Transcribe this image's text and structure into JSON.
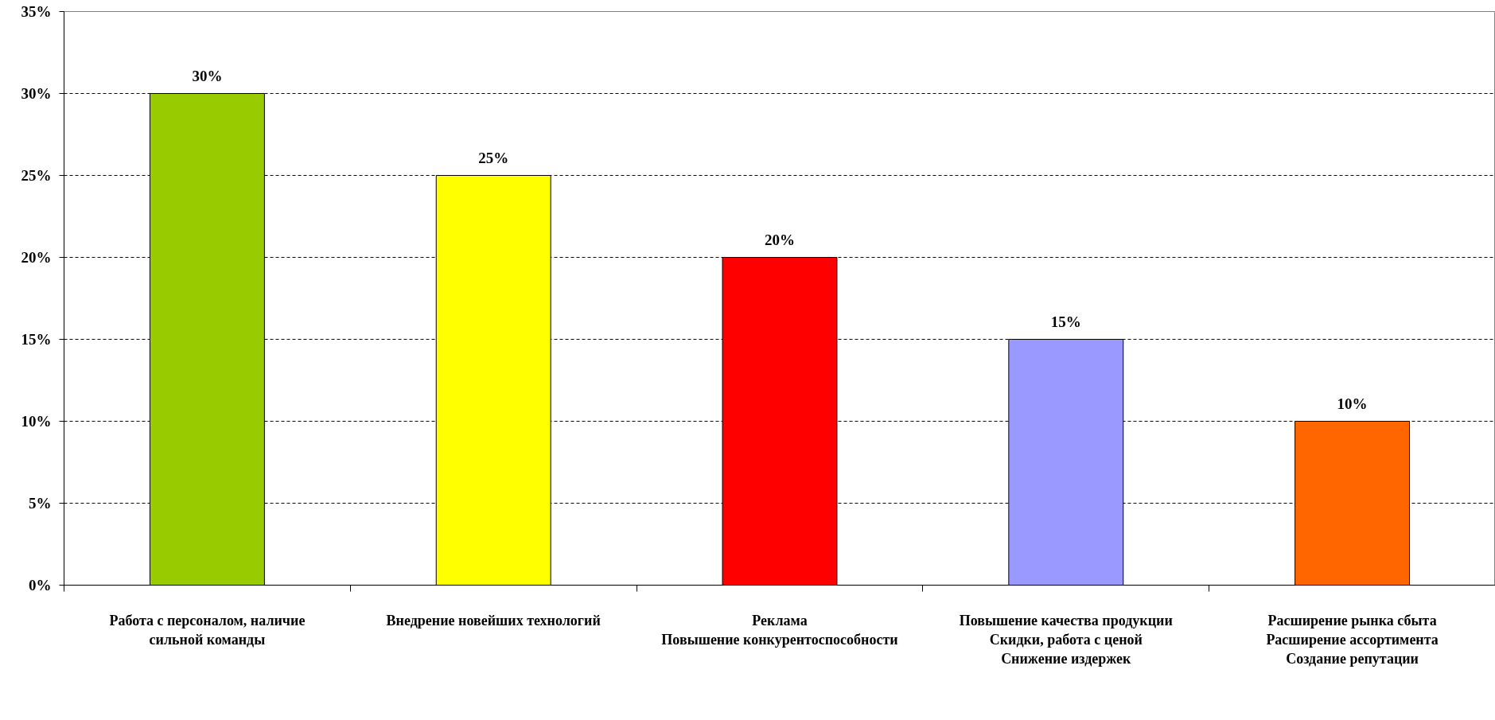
{
  "chart_data": {
    "type": "bar",
    "categories": [
      "Работа с персоналом, наличие\nсильной команды",
      "Внедрение новейших технологий",
      "Реклама\nПовышение конкурентоспособности",
      "Повышение качества продукции\nСкидки, работа с ценой\nСнижение издержек",
      "Расширение рынка сбыта\nРасширение ассортимента\nСоздание репутации"
    ],
    "values": [
      30,
      25,
      20,
      15,
      10
    ],
    "colors": [
      "#99cc00",
      "#ffff00",
      "#ff0000",
      "#9999ff",
      "#ff6600"
    ],
    "value_labels": [
      "30%",
      "25%",
      "20%",
      "15%",
      "10%"
    ],
    "ylim": [
      0,
      35
    ],
    "yticks": [
      {
        "value": 0,
        "label": "0%"
      },
      {
        "value": 5,
        "label": "5%"
      },
      {
        "value": 10,
        "label": "10%"
      },
      {
        "value": 15,
        "label": "15%"
      },
      {
        "value": 20,
        "label": "20%"
      },
      {
        "value": 25,
        "label": "25%"
      },
      {
        "value": 30,
        "label": "30%"
      },
      {
        "value": 35,
        "label": "35%"
      }
    ],
    "grid": "y"
  }
}
